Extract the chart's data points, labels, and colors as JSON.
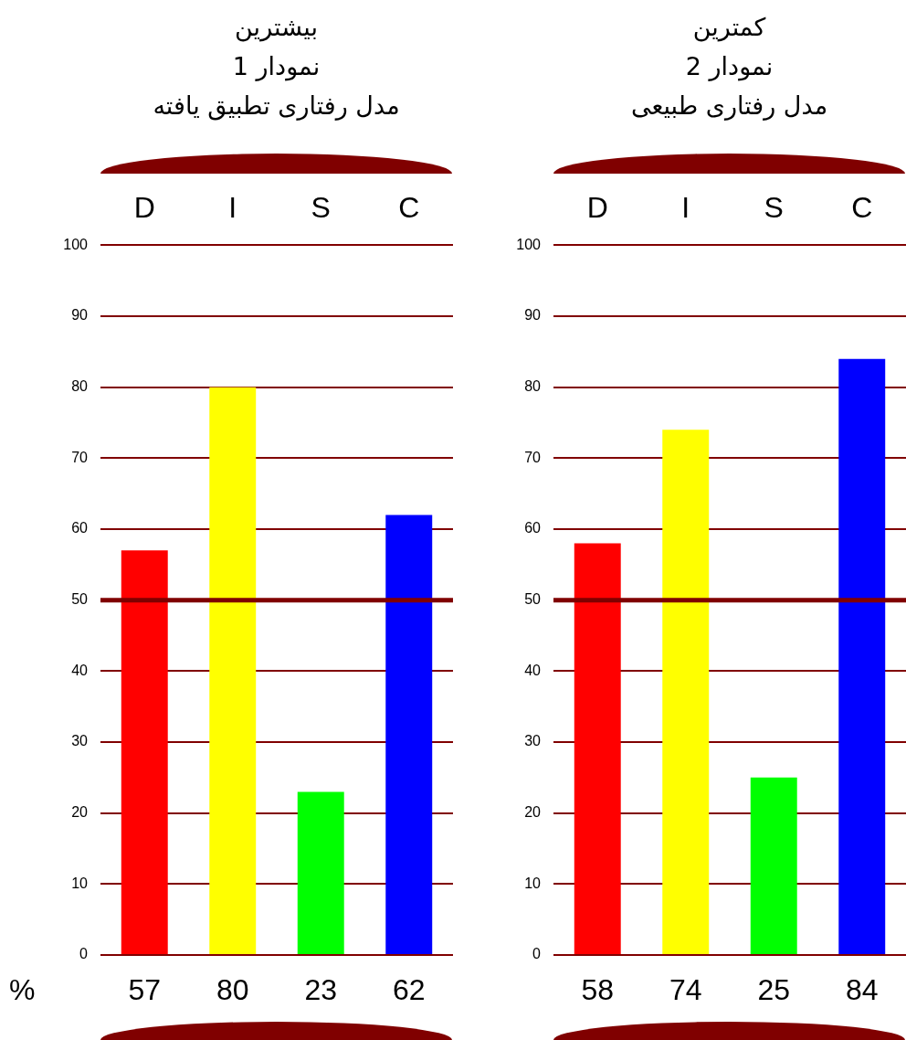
{
  "chart_data": [
    {
      "type": "bar",
      "title": "بیشترین\nنمودار 1\nمدل رفتاری تطبیق یافته",
      "categories": [
        "D",
        "I",
        "S",
        "C"
      ],
      "values": [
        57,
        80,
        23,
        62
      ],
      "colors": [
        "#ff0000",
        "#ffff00",
        "#00ff00",
        "#0000ff"
      ],
      "ylim": [
        0,
        100
      ],
      "yticks": [
        0,
        10,
        20,
        30,
        40,
        50,
        60,
        70,
        80,
        90,
        100
      ],
      "grid": "y",
      "data_labels": true,
      "ref_lines": [
        {
          "axis": "y",
          "value": 50,
          "color": "#800000"
        }
      ],
      "annotations": [
        "%"
      ]
    },
    {
      "type": "bar",
      "title": "کمترین\nنمودار 2\nمدل رفتاری طبیعی",
      "categories": [
        "D",
        "I",
        "S",
        "C"
      ],
      "values": [
        58,
        74,
        25,
        84
      ],
      "colors": [
        "#ff0000",
        "#ffff00",
        "#00ff00",
        "#0000ff"
      ],
      "ylim": [
        0,
        100
      ],
      "yticks": [
        0,
        10,
        20,
        30,
        40,
        50,
        60,
        70,
        80,
        90,
        100
      ],
      "grid": "y",
      "data_labels": true,
      "ref_lines": [
        {
          "axis": "y",
          "value": 50,
          "color": "#800000"
        }
      ]
    }
  ]
}
